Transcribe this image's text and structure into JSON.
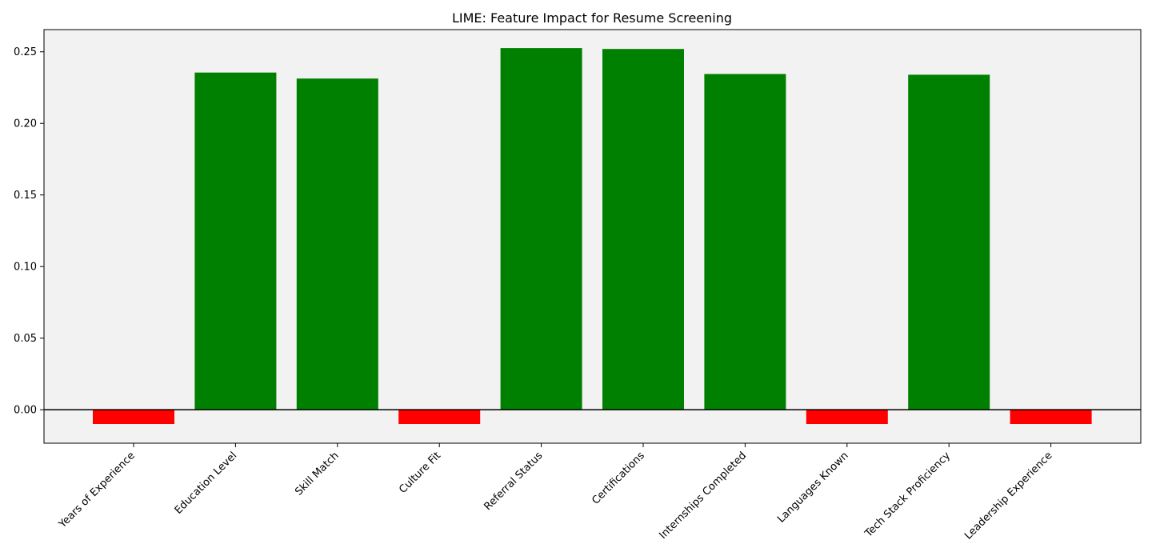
{
  "chart_data": {
    "type": "bar",
    "title": "LIME: Feature Impact for Resume Screening",
    "xlabel": "",
    "ylabel": "",
    "categories": [
      "Years of Experience",
      "Education Level",
      "Skill Match",
      "Culture Fit",
      "Referral Status",
      "Certifications",
      "Internships Completed",
      "Languages Known",
      "Tech Stack Proficiency",
      "Leadership Experience"
    ],
    "values": [
      -0.01,
      0.2355,
      0.2313,
      -0.01,
      0.2526,
      0.252,
      0.2345,
      -0.01,
      0.234,
      -0.01
    ],
    "ylim": [
      -0.0234,
      0.2655
    ],
    "yticks": [
      0.0,
      0.05,
      0.1,
      0.15,
      0.2,
      0.25
    ],
    "ytick_labels": [
      "0.00",
      "0.05",
      "0.10",
      "0.15",
      "0.20",
      "0.25"
    ],
    "grid": false,
    "zero_line": true,
    "colors": {
      "positive": "#008000",
      "negative": "#ff0000",
      "plot_background": "#f2f2f2",
      "zero_line": "#000000"
    }
  }
}
